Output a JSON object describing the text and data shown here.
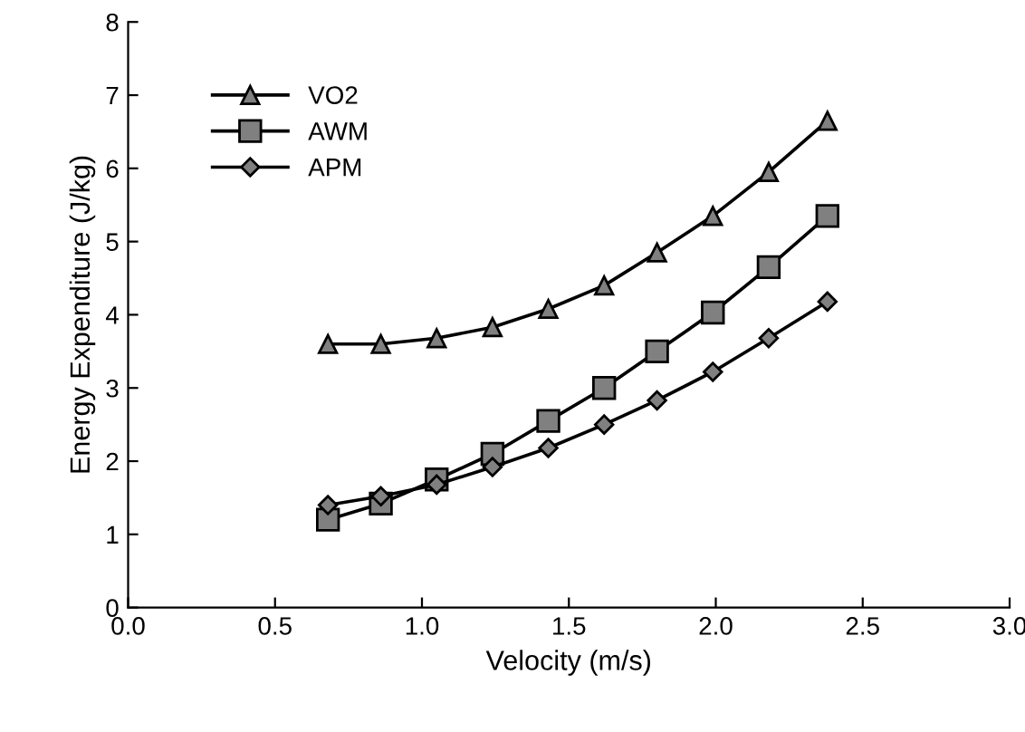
{
  "chart_data": {
    "type": "line",
    "xlabel": "Velocity (m/s)",
    "ylabel": "Energy Expenditure (J/kg)",
    "x": [
      0.68,
      0.86,
      1.05,
      1.24,
      1.43,
      1.62,
      1.8,
      1.99,
      2.18,
      2.38
    ],
    "series": [
      {
        "name": "VO2",
        "color": "#808080",
        "marker": "triangle",
        "values": [
          3.6,
          3.6,
          3.68,
          3.83,
          4.08,
          4.4,
          4.85,
          5.35,
          5.95,
          6.65
        ]
      },
      {
        "name": "AWM",
        "color": "#808080",
        "marker": "square",
        "values": [
          1.2,
          1.42,
          1.75,
          2.1,
          2.55,
          3.0,
          3.5,
          4.03,
          4.65,
          5.35
        ]
      },
      {
        "name": "APM",
        "color": "#808080",
        "marker": "diamond",
        "values": [
          1.4,
          1.52,
          1.68,
          1.92,
          2.18,
          2.5,
          2.83,
          3.22,
          3.68,
          4.18
        ]
      }
    ],
    "xlim": [
      0,
      3
    ],
    "ylim": [
      0,
      8
    ],
    "xticks": [
      {
        "value": 0,
        "label": "0.0"
      },
      {
        "value": 0.5,
        "label": "0.5"
      },
      {
        "value": 1,
        "label": "1.0"
      },
      {
        "value": 1.5,
        "label": "1.5"
      },
      {
        "value": 2,
        "label": "2.0"
      },
      {
        "value": 2.5,
        "label": "2.5"
      },
      {
        "value": 3,
        "label": "3.0"
      }
    ],
    "yticks": [
      0,
      1,
      2,
      3,
      4,
      5,
      6,
      7,
      8
    ],
    "grid": false,
    "legend": "top left",
    "line_style": "solid"
  }
}
